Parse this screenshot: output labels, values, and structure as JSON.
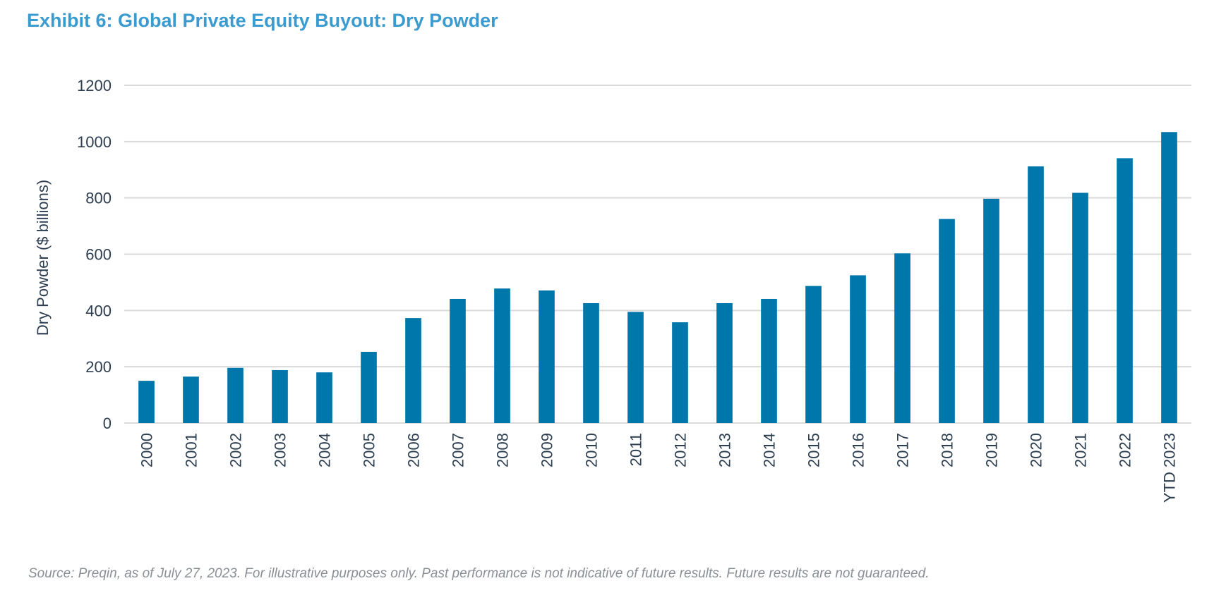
{
  "title": "Exhibit 6: Global Private Equity Buyout: Dry Powder",
  "source": "Source: Preqin, as of July 27, 2023. For illustrative purposes only. Past performance is not indicative of future results. Future results are not guaranteed.",
  "chart_data": {
    "type": "bar",
    "title": "Exhibit 6: Global Private Equity Buyout: Dry Powder",
    "xlabel": "",
    "ylabel": "Dry Powder ($ billions)",
    "ylim": [
      0,
      1200
    ],
    "yticks": [
      0,
      200,
      400,
      600,
      800,
      1000,
      1200
    ],
    "grid": true,
    "bar_color": "#0077aa",
    "categories": [
      "2000",
      "2001",
      "2002",
      "2003",
      "2004",
      "2005",
      "2006",
      "2007",
      "2008",
      "2009",
      "2010",
      "2011",
      "2012",
      "2013",
      "2014",
      "2015",
      "2016",
      "2017",
      "2018",
      "2019",
      "2020",
      "2021",
      "2022",
      "YTD 2023"
    ],
    "values": [
      150,
      165,
      196,
      188,
      180,
      253,
      373,
      441,
      478,
      471,
      426,
      395,
      358,
      426,
      441,
      487,
      525,
      603,
      725,
      797,
      912,
      818,
      941,
      1034
    ]
  }
}
